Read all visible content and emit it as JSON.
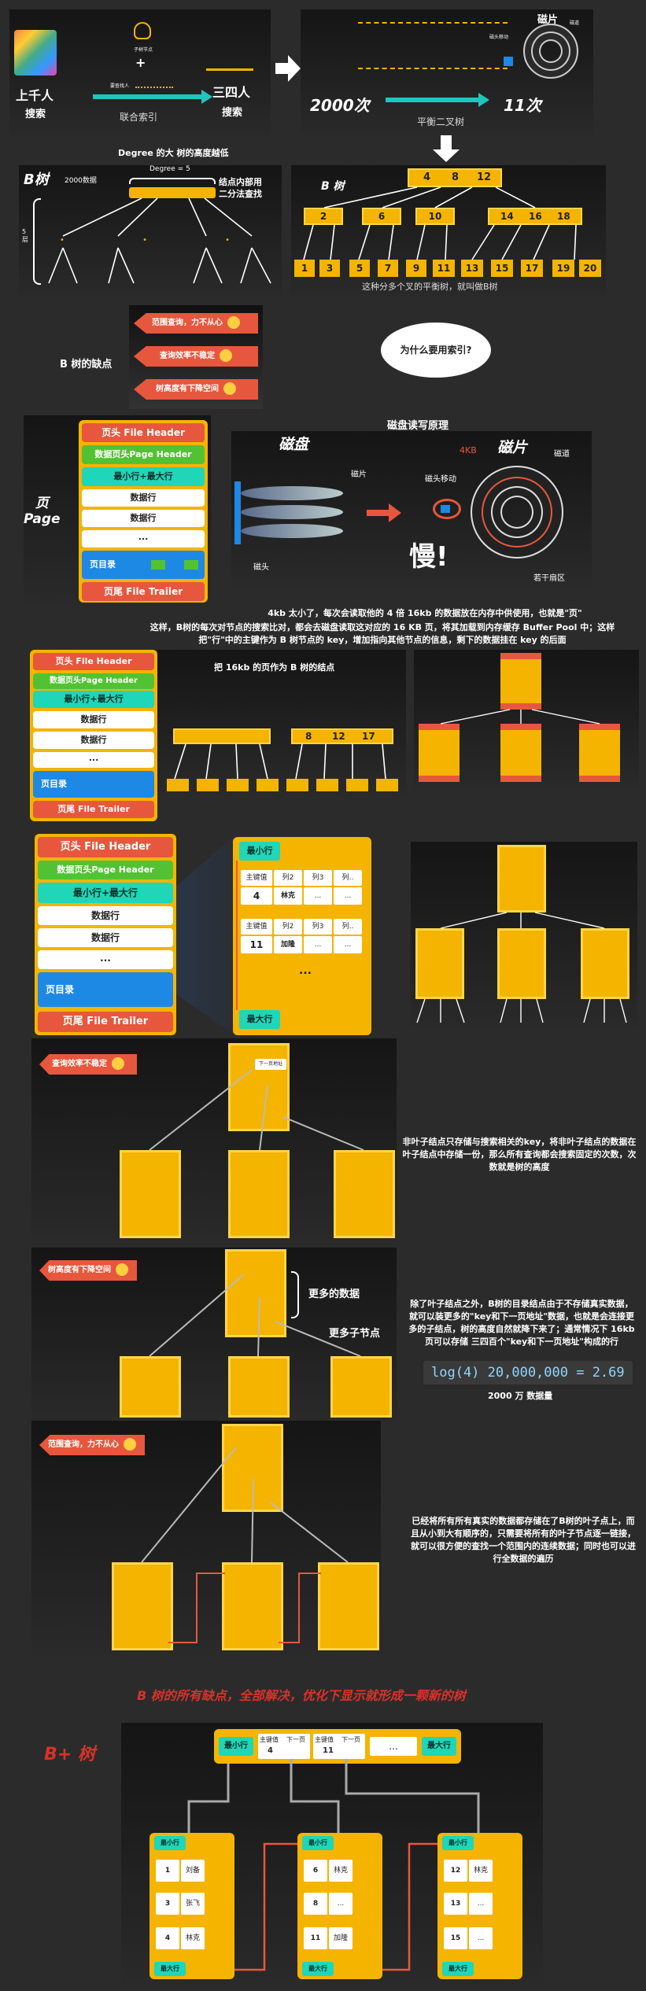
{
  "section1": {
    "thousands_people": "上千人",
    "search": "搜索",
    "plus": "+",
    "tree_nodes": "子树节点",
    "search_man": "要查找人",
    "combined_index": "联合索引",
    "three_four_people": "三四人",
    "search2": "搜索",
    "count_2000": "2000次",
    "count_11": "11次",
    "balanced_bst": "平衡二叉树",
    "disk": "磁片",
    "head_move": "磁头移动",
    "track": "磁道",
    "degree_caption": "Degree 的大 树的高度越低"
  },
  "btree1": {
    "title": "B树",
    "data_2000": "2000数据",
    "degree": "Degree = 5",
    "inner_note": "结点内部用\n二分法查找",
    "layers": "5\n层",
    "title2": "B 树",
    "root_keys": [
      "4",
      "8",
      "12"
    ],
    "level2": [
      "2",
      "6",
      "10",
      "14",
      "16",
      "18"
    ],
    "leaves": [
      "1",
      "3",
      "5",
      "7",
      "9",
      "11",
      "13",
      "15",
      "17",
      "19",
      "20"
    ],
    "caption": "这种分多个叉的平衡树，就叫做B树"
  },
  "defects": {
    "label": "B 树的缺点",
    "items": [
      "范围查询，力不从心",
      "查询效率不稳定",
      "树高度有下降空间"
    ],
    "why": "为什么要用索引?"
  },
  "disk_section": {
    "page_word": "页\nPage",
    "page_header": "页头 File Header",
    "data_header": "数据页头Page Header",
    "min_max": "最小行+最大行",
    "data_row": "数据行",
    "dots": "...",
    "page_dir": "页目录",
    "page_trailer": "页尾 File Trailer",
    "title": "磁盘读写原理",
    "disk_label": "磁盘",
    "platter": "磁片",
    "head": "磁头",
    "disk2": "磁片",
    "size_4kb": "4KB",
    "head_move": "磁头移动",
    "track": "磁道",
    "sector": "若干扇区",
    "slow": "慢!",
    "note1": "4kb 太小了，每次会读取他的 4 倍 16kb 的数据放在内存中供使用，也就是\"页\"",
    "note2": "这样，B树的每次对节点的搜索比对，都会去磁盘读取这对应的 16 KB 页，将其加载到内存缓存 Buffer Pool 中；这样把\"行\"中的主键作为 B 树节点的 key，增加指向其他节点的信息，剩下的数据挂在 key 的后面"
  },
  "page_tree": {
    "caption": "把 16kb 的页作为 B 树的结点",
    "keys": [
      "8",
      "12",
      "17"
    ],
    "min_row": "最小行",
    "max_row": "最大行",
    "pk": "主键值",
    "col2": "列2",
    "col3": "列3",
    "coln": "列..",
    "pk1": "4",
    "name1": "林克",
    "pk2": "11",
    "name2": "加隆",
    "ell": "..."
  },
  "unstable": {
    "tag": "查询效率不稳定",
    "next_addr": "下一页地址",
    "note": "非叶子结点只存储与搜索相关的key，将非叶子结点的数据在叶子结点中存储一份，那么所有查询都会搜索固定的次数，次数就是树的高度"
  },
  "height": {
    "tag": "树高度有下降空间",
    "more_data": "更多的数据",
    "more_children": "更多子节点",
    "note": "除了叶子结点之外，B树的目录结点由于不存储真实数据，就可以装更多的\"key和下一页地址\"数据，也就是会连接更多的子结点，树的高度自然就降下来了；通常情况下 16kb 页可以存储 三四百个\"key和下一页地址\"构成的行",
    "formula": "log(4) 20,000,000 = 2.69",
    "data_2000w": "2000 万 数据量"
  },
  "range": {
    "tag": "范围查询，力不从心",
    "note": "已经将所有所有真实的数据都存储在了B树的叶子点上，而且从小到大有顺序的，只需要将所有的叶子节点逐一链接，就可以很方便的查找一个范围内的连续数据；同时也可以进行全数据的遍历"
  },
  "bplus": {
    "headline": "B 树的所有缺点，全部解决，优化下显示就形成一颗新的树",
    "title": "B+ 树",
    "min_row": "最小行",
    "max_row": "最大行",
    "pk": "主键值",
    "next": "下一页",
    "dots": "...",
    "root_keys": [
      "4",
      "11"
    ],
    "leaf1": [
      [
        "1",
        "刘备"
      ],
      [
        "3",
        "张飞"
      ],
      [
        "4",
        "林克"
      ]
    ],
    "leaf2": [
      [
        "6",
        "林克"
      ],
      [
        "8",
        "..."
      ],
      [
        "11",
        "加隆"
      ]
    ],
    "leaf3": [
      [
        "12",
        "林克"
      ],
      [
        "13",
        "..."
      ],
      [
        "15",
        "..."
      ]
    ]
  },
  "colors": {
    "accent": "#f4b400",
    "red": "#e7573d",
    "teal": "#1fd6b8",
    "blue": "#1e88e5",
    "green": "#52c234"
  }
}
